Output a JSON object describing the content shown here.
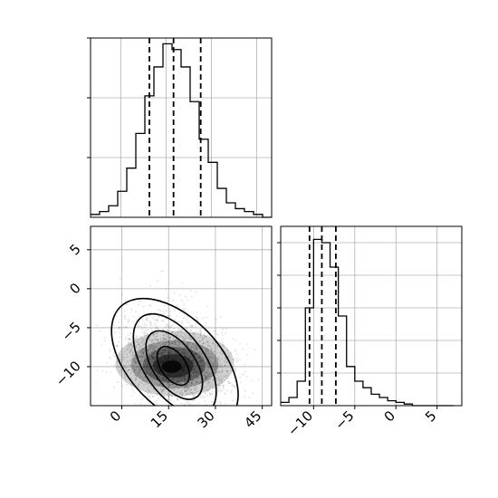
{
  "chart_data": {
    "type": "corner",
    "panels": [
      {
        "name": "hist-param-1",
        "type": "histogram",
        "xlim": [
          -10,
          50
        ],
        "bin_edges": [
          -10,
          -7,
          -4,
          -1,
          2,
          5,
          8,
          11,
          14,
          17,
          20,
          23,
          26,
          29,
          32,
          35,
          38,
          41,
          44,
          47,
          50
        ],
        "counts": [
          1,
          2,
          4,
          9,
          17,
          29,
          42,
          52,
          60,
          58,
          52,
          40,
          27,
          19,
          10,
          5,
          3,
          2,
          1,
          0
        ],
        "ylim": [
          0,
          62
        ],
        "quantile_lines": [
          9.5,
          17.5,
          26.5
        ],
        "ytick_count": 3
      },
      {
        "name": "scatter-2d",
        "type": "scatter-density",
        "xlim": [
          -10,
          48
        ],
        "ylim": [
          -15,
          8
        ],
        "xticks": [
          0,
          15,
          30,
          45
        ],
        "yticks": [
          -10,
          -5,
          0,
          5
        ],
        "xtick_labels": [
          "0",
          "15",
          "30",
          "45"
        ],
        "ytick_labels": [
          "−10",
          "−5",
          "0",
          "5"
        ],
        "center": [
          17,
          -9.5
        ],
        "contours": [
          {
            "cx": 17,
            "cy": -9.5,
            "rx": 25,
            "ry": 5.8,
            "rot": -0.1
          },
          {
            "cx": 17,
            "cy": -9.7,
            "rx": 18.5,
            "ry": 3.9,
            "rot": -0.12
          },
          {
            "cx": 16.8,
            "cy": -9.8,
            "rx": 12.5,
            "ry": 2.7,
            "rot": -0.12
          },
          {
            "cx": 16.5,
            "cy": -9.9,
            "rx": 7,
            "ry": 1.6,
            "rot": -0.12
          }
        ]
      },
      {
        "name": "hist-param-2",
        "type": "histogram",
        "xlim": [
          -14,
          8
        ],
        "bin_edges": [
          -14,
          -13,
          -12,
          -11,
          -10,
          -9,
          -8,
          -7,
          -6,
          -5,
          -4,
          -3,
          -2,
          -1,
          0,
          1,
          2,
          3,
          4,
          5,
          6,
          7
        ],
        "counts": [
          2,
          5,
          15,
          60,
          102,
          100,
          85,
          55,
          24,
          15,
          11,
          7,
          5,
          3,
          2,
          1,
          0,
          0,
          0,
          0,
          0
        ],
        "ylim": [
          0,
          110
        ],
        "quantile_lines": [
          -10.5,
          -9,
          -7.3
        ],
        "xticks": [
          -10,
          -5,
          0,
          5
        ],
        "xtick_labels": [
          "−10",
          "−5",
          "0",
          "5"
        ],
        "ytick_count": 5
      }
    ]
  }
}
